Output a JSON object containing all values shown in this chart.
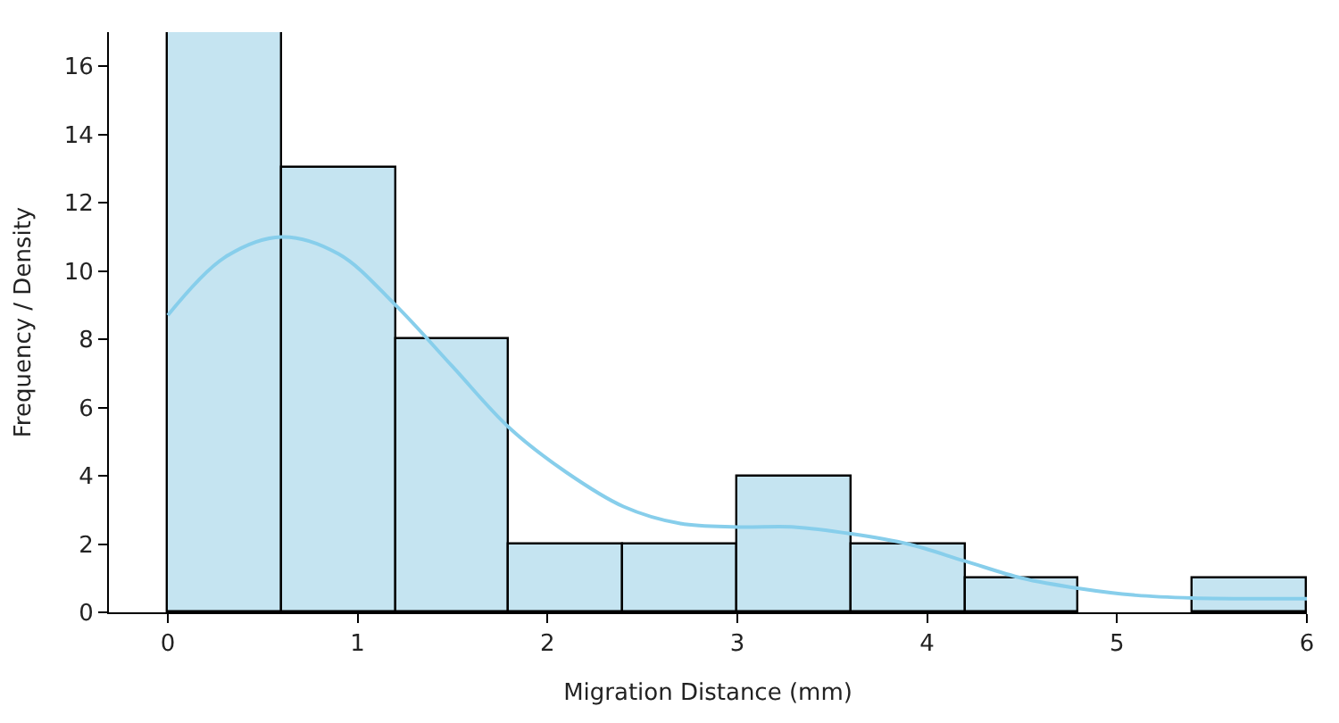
{
  "chart_data": {
    "type": "histogram",
    "xlabel": "Migration Distance (mm)",
    "ylabel": "Frequency / Density",
    "bins": [
      0,
      0.6,
      1.2,
      1.8,
      2.4,
      3.0,
      3.6,
      4.2,
      4.8,
      5.4,
      6.0
    ],
    "series": [
      {
        "type": "histogram",
        "color": "#c5e4f1",
        "values": [
          17,
          13,
          8,
          2,
          2,
          4,
          2,
          1,
          0,
          1
        ]
      },
      {
        "type": "line",
        "color": "#87ceeb",
        "x": [
          0,
          0.3,
          0.6,
          0.9,
          1.2,
          1.5,
          1.8,
          2.1,
          2.4,
          2.7,
          3.0,
          3.3,
          3.6,
          3.9,
          4.2,
          4.5,
          4.8,
          5.1,
          5.4,
          5.7,
          6.0
        ],
        "values": [
          8.7,
          10.4,
          11.0,
          10.5,
          9.0,
          7.2,
          5.4,
          4.1,
          3.1,
          2.6,
          2.5,
          2.5,
          2.3,
          2.0,
          1.5,
          1.0,
          0.7,
          0.5,
          0.42,
          0.4,
          0.4
        ]
      }
    ],
    "xlim": [
      -0.31,
      6.0
    ],
    "xticks": [
      0,
      1,
      2,
      3,
      4,
      5,
      6
    ],
    "ylim": [
      0,
      17.0
    ],
    "yticks": [
      0,
      2,
      4,
      6,
      8,
      10,
      12,
      14,
      16
    ]
  }
}
